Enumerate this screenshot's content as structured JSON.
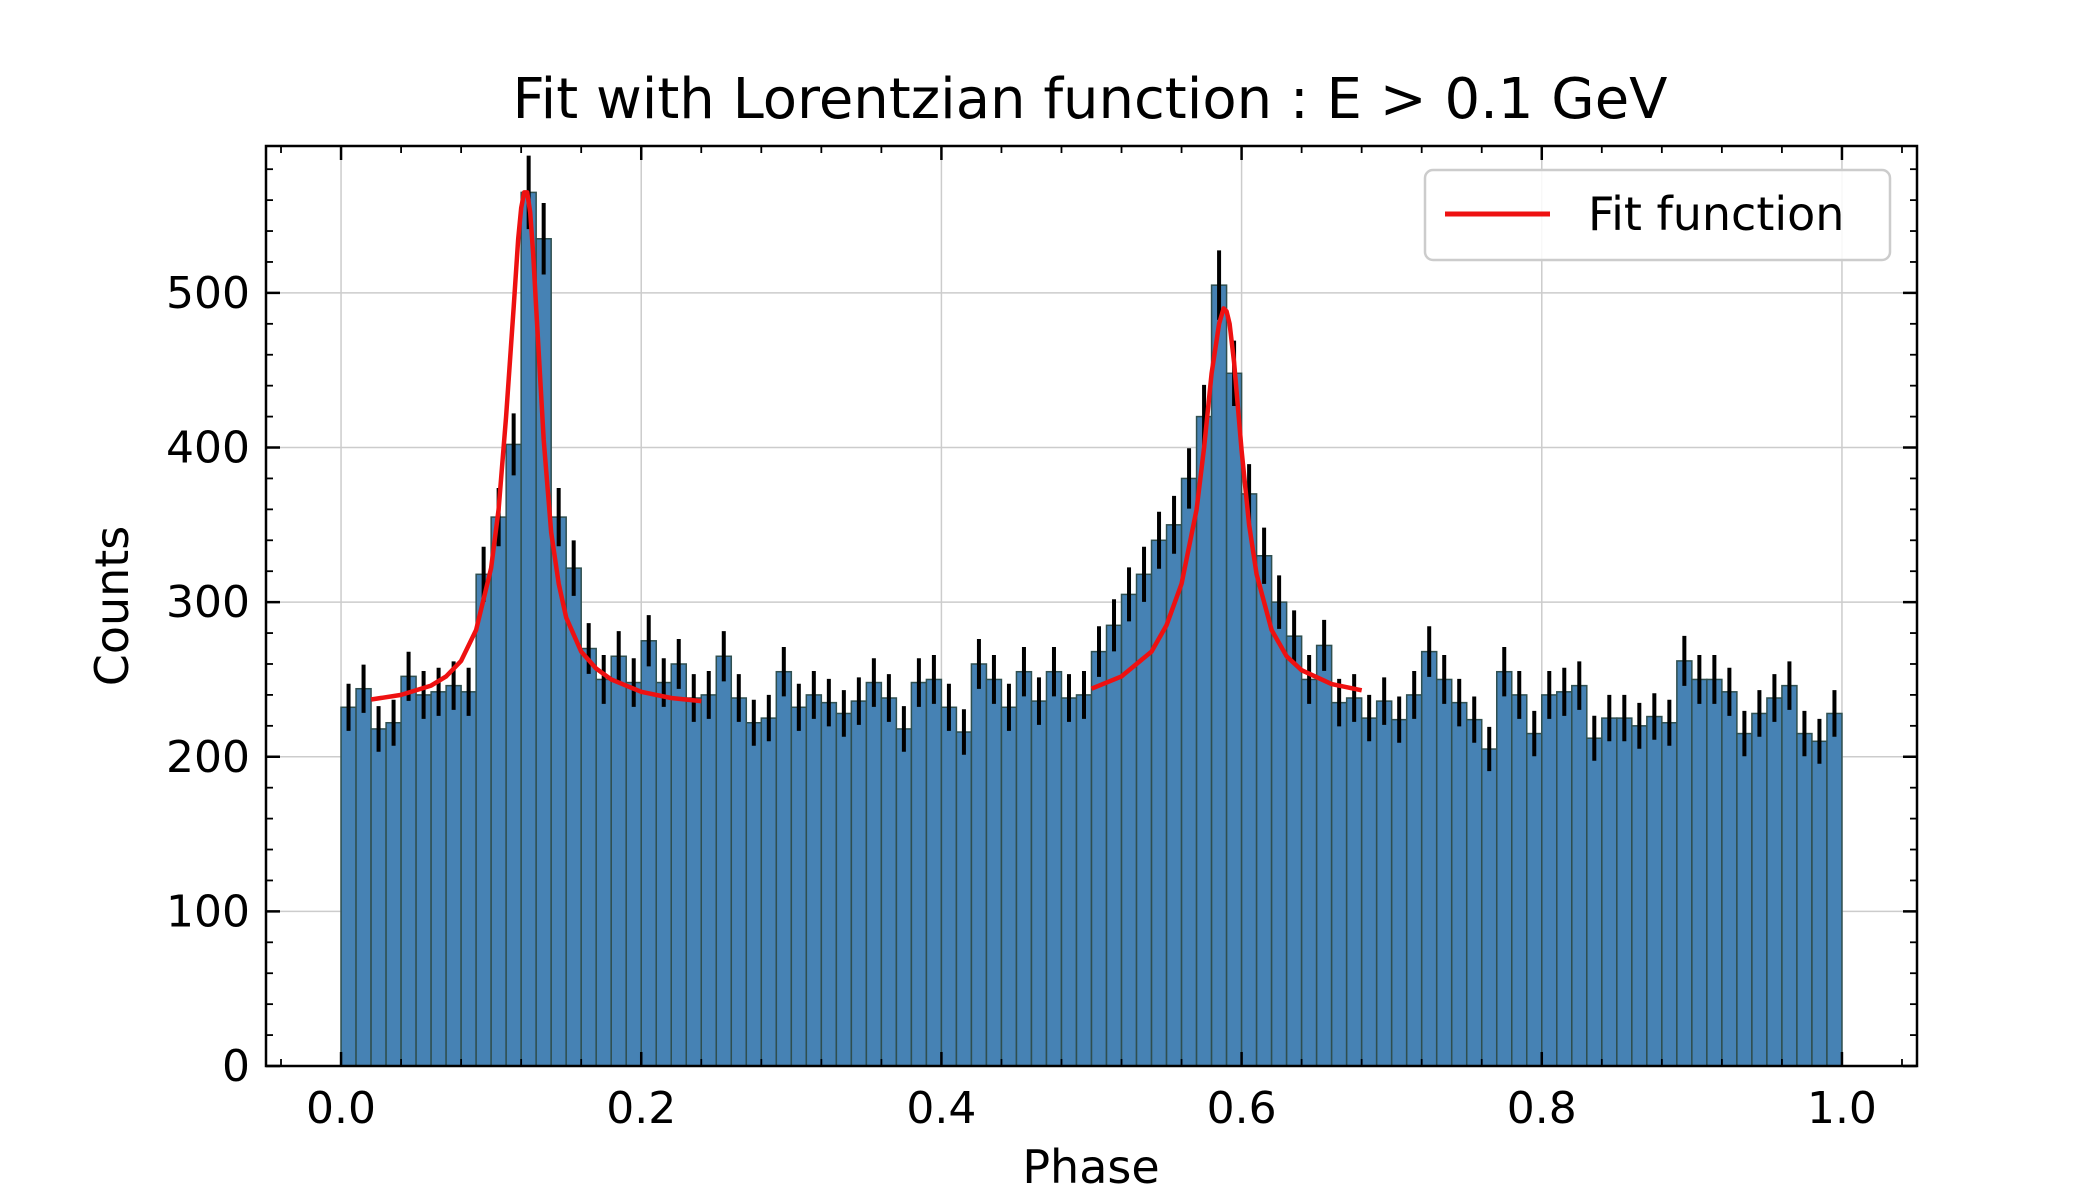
{
  "chart_data": {
    "type": "bar",
    "title": "Fit with Lorentzian function : E > 0.1 GeV",
    "xlabel": "Phase",
    "ylabel": "Counts",
    "xlim": [
      -0.05,
      1.05
    ],
    "ylim": [
      0,
      595
    ],
    "xticks": [
      "0.0",
      "0.2",
      "0.4",
      "0.6",
      "0.8",
      "1.0"
    ],
    "xtick_values": [
      0.0,
      0.2,
      0.4,
      0.6,
      0.8,
      1.0
    ],
    "yticks": [
      "0",
      "100",
      "200",
      "300",
      "400",
      "500"
    ],
    "ytick_values": [
      0,
      100,
      200,
      300,
      400,
      500
    ],
    "grid": true,
    "legend_position": "top-right",
    "bin_width": 0.01,
    "histogram": {
      "x_start": 0.0,
      "x_end": 1.0,
      "counts": [
        232,
        244,
        218,
        222,
        252,
        240,
        242,
        246,
        242,
        318,
        355,
        402,
        565,
        535,
        355,
        322,
        270,
        250,
        265,
        248,
        275,
        248,
        260,
        238,
        240,
        265,
        238,
        222,
        225,
        255,
        232,
        240,
        235,
        228,
        236,
        248,
        238,
        218,
        248,
        250,
        232,
        216,
        260,
        250,
        232,
        255,
        236,
        255,
        238,
        240,
        268,
        285,
        305,
        318,
        340,
        350,
        380,
        420,
        505,
        448,
        370,
        330,
        300,
        278,
        250,
        272,
        235,
        238,
        225,
        236,
        224,
        240,
        268,
        250,
        235,
        224,
        205,
        255,
        240,
        215,
        240,
        242,
        246,
        212,
        225,
        225,
        220,
        226,
        222,
        262,
        250,
        250,
        242,
        215,
        228,
        238,
        246,
        215,
        210,
        228
      ]
    },
    "series": [
      {
        "name": "Fit function",
        "color": "#ee1111",
        "type": "line",
        "x": [
          0.02,
          0.04,
          0.06,
          0.07,
          0.08,
          0.09,
          0.1,
          0.105,
          0.11,
          0.115,
          0.118,
          0.12,
          0.122,
          0.124,
          0.126,
          0.128,
          0.13,
          0.135,
          0.14,
          0.145,
          0.15,
          0.16,
          0.17,
          0.18,
          0.2,
          0.22,
          0.24
        ],
        "y": [
          237,
          240,
          246,
          252,
          262,
          282,
          322,
          360,
          420,
          490,
          535,
          555,
          565,
          565,
          552,
          525,
          490,
          405,
          345,
          312,
          290,
          268,
          257,
          250,
          242,
          238,
          236
        ]
      },
      {
        "name": "Fit function",
        "color": "#ee1111",
        "type": "line",
        "x": [
          0.5,
          0.52,
          0.54,
          0.55,
          0.56,
          0.57,
          0.575,
          0.58,
          0.585,
          0.588,
          0.59,
          0.592,
          0.595,
          0.6,
          0.605,
          0.61,
          0.62,
          0.63,
          0.64,
          0.66,
          0.68
        ],
        "y": [
          244,
          252,
          268,
          285,
          312,
          360,
          400,
          448,
          480,
          490,
          488,
          480,
          455,
          398,
          350,
          318,
          282,
          265,
          256,
          247,
          243
        ]
      }
    ],
    "colors": {
      "bar_fill": "#4682b4",
      "bar_edge": "#2f4f4f",
      "error_bar": "#000000",
      "fit_line": "#ee1111",
      "grid": "#cccccc"
    }
  }
}
